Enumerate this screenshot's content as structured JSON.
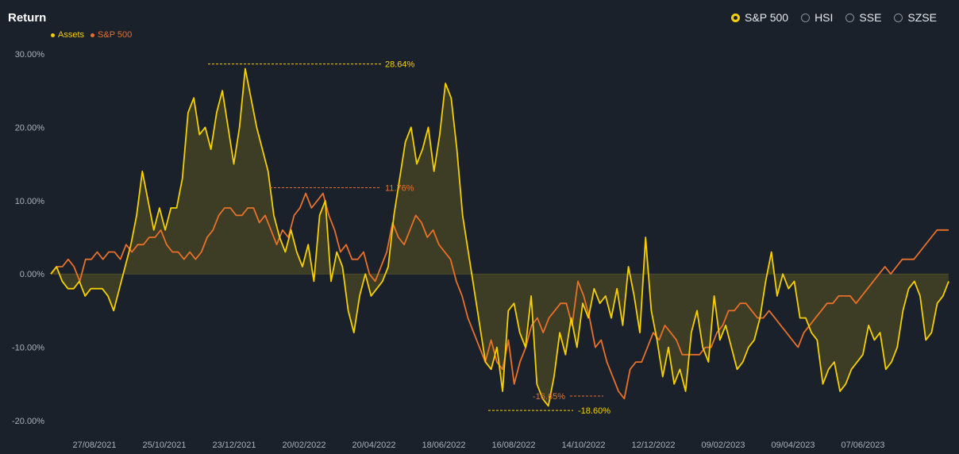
{
  "header": {
    "title": "Return",
    "benchmarks": [
      {
        "label": "S&P 500",
        "selected": true
      },
      {
        "label": "HSI",
        "selected": false
      },
      {
        "label": "SSE",
        "selected": false
      },
      {
        "label": "SZSE",
        "selected": false
      }
    ]
  },
  "colors": {
    "assets": "#f5d000",
    "sp500": "#e8702a",
    "background": "#1b212b"
  },
  "chart_data": {
    "type": "line",
    "title": "Return",
    "yticks": [
      "30.00%",
      "20.00%",
      "10.00%",
      "0.00%",
      "-10.00%",
      "-20.00%"
    ],
    "xticks": [
      "27/08/2021",
      "25/10/2021",
      "23/12/2021",
      "20/02/2022",
      "20/04/2022",
      "18/06/2022",
      "16/08/2022",
      "14/10/2022",
      "12/12/2022",
      "09/02/2023",
      "09/04/2023",
      "07/06/2023"
    ],
    "ylim": [
      -0.2,
      0.3
    ],
    "legend": "top-left",
    "grid": false,
    "series": [
      {
        "name": "Assets",
        "color": "#f5d000",
        "values": [
          0,
          1,
          -1,
          -2,
          -2,
          -1,
          -3,
          -2,
          -2,
          -2,
          -3,
          -5,
          -2,
          1,
          4,
          8,
          14,
          10,
          6,
          9,
          6,
          9,
          9,
          13,
          22,
          24,
          19,
          20,
          17,
          22,
          25,
          20,
          15,
          20,
          28,
          24,
          20,
          17,
          14,
          8,
          5,
          3,
          6,
          3,
          1,
          4,
          -1,
          8,
          10,
          -1,
          3,
          1,
          -5,
          -8,
          -3,
          0,
          -3,
          -2,
          -1,
          1,
          8,
          13,
          18,
          20,
          15,
          17,
          20,
          14,
          19,
          26,
          24,
          17,
          8,
          3,
          -2,
          -7,
          -12,
          -13,
          -10,
          -16,
          -5,
          -4,
          -8,
          -10,
          -3,
          -15,
          -17,
          -18,
          -14,
          -8,
          -11,
          -6,
          -10,
          -4,
          -6,
          -2,
          -4,
          -3,
          -6,
          -2,
          -7,
          1,
          -3,
          -8,
          5,
          -5,
          -9,
          -14,
          -10,
          -15,
          -13,
          -16,
          -8,
          -5,
          -10,
          -12,
          -3,
          -9,
          -7,
          -10,
          -13,
          -12,
          -10,
          -9,
          -6,
          -1,
          3,
          -3,
          0,
          -2,
          -1,
          -6,
          -6,
          -8,
          -9,
          -15,
          -13,
          -12,
          -16,
          -15,
          -13,
          -12,
          -11,
          -7,
          -9,
          -8,
          -13,
          -12,
          -10,
          -5,
          -2,
          -1,
          -3,
          -9,
          -8,
          -4,
          -3,
          -1
        ]
      },
      {
        "name": "S&P 500",
        "color": "#e8702a",
        "values": [
          0,
          1,
          1,
          2,
          1,
          -1,
          2,
          2,
          3,
          2,
          3,
          3,
          2,
          4,
          3,
          4,
          4,
          5,
          5,
          6,
          4,
          3,
          3,
          2,
          3,
          2,
          3,
          5,
          6,
          8,
          9,
          9,
          8,
          8,
          9,
          9,
          7,
          8,
          6,
          4,
          6,
          5,
          8,
          9,
          11,
          9,
          10,
          11,
          8,
          6,
          3,
          4,
          2,
          2,
          3,
          0,
          -1,
          1,
          3,
          7,
          5,
          4,
          6,
          8,
          7,
          5,
          6,
          4,
          3,
          2,
          -1,
          -3,
          -6,
          -8,
          -10,
          -12,
          -9,
          -12,
          -13,
          -9,
          -15,
          -12,
          -10,
          -7,
          -6,
          -8,
          -6,
          -5,
          -4,
          -4,
          -7,
          -1,
          -3,
          -6,
          -10,
          -9,
          -12,
          -14,
          -16,
          -17,
          -13,
          -12,
          -12,
          -10,
          -8,
          -9,
          -7,
          -8,
          -9,
          -11,
          -11,
          -11,
          -11,
          -10,
          -10,
          -8,
          -7,
          -5,
          -5,
          -4,
          -4,
          -5,
          -6,
          -6,
          -5,
          -6,
          -7,
          -8,
          -9,
          -10,
          -8,
          -7,
          -6,
          -5,
          -4,
          -4,
          -3,
          -3,
          -3,
          -4,
          -3,
          -2,
          -1,
          0,
          1,
          0,
          1,
          2,
          2,
          2,
          3,
          4,
          5,
          6,
          6,
          6
        ]
      }
    ],
    "annotations": [
      {
        "series": "Assets",
        "label": "28.64%",
        "value": 0.2864
      },
      {
        "series": "S&P 500",
        "label": "11.76%",
        "value": 0.1176
      },
      {
        "series": "S&P 500",
        "label": "-16.65%",
        "value": -0.1665
      },
      {
        "series": "Assets",
        "label": "-18.60%",
        "value": -0.186
      }
    ]
  }
}
